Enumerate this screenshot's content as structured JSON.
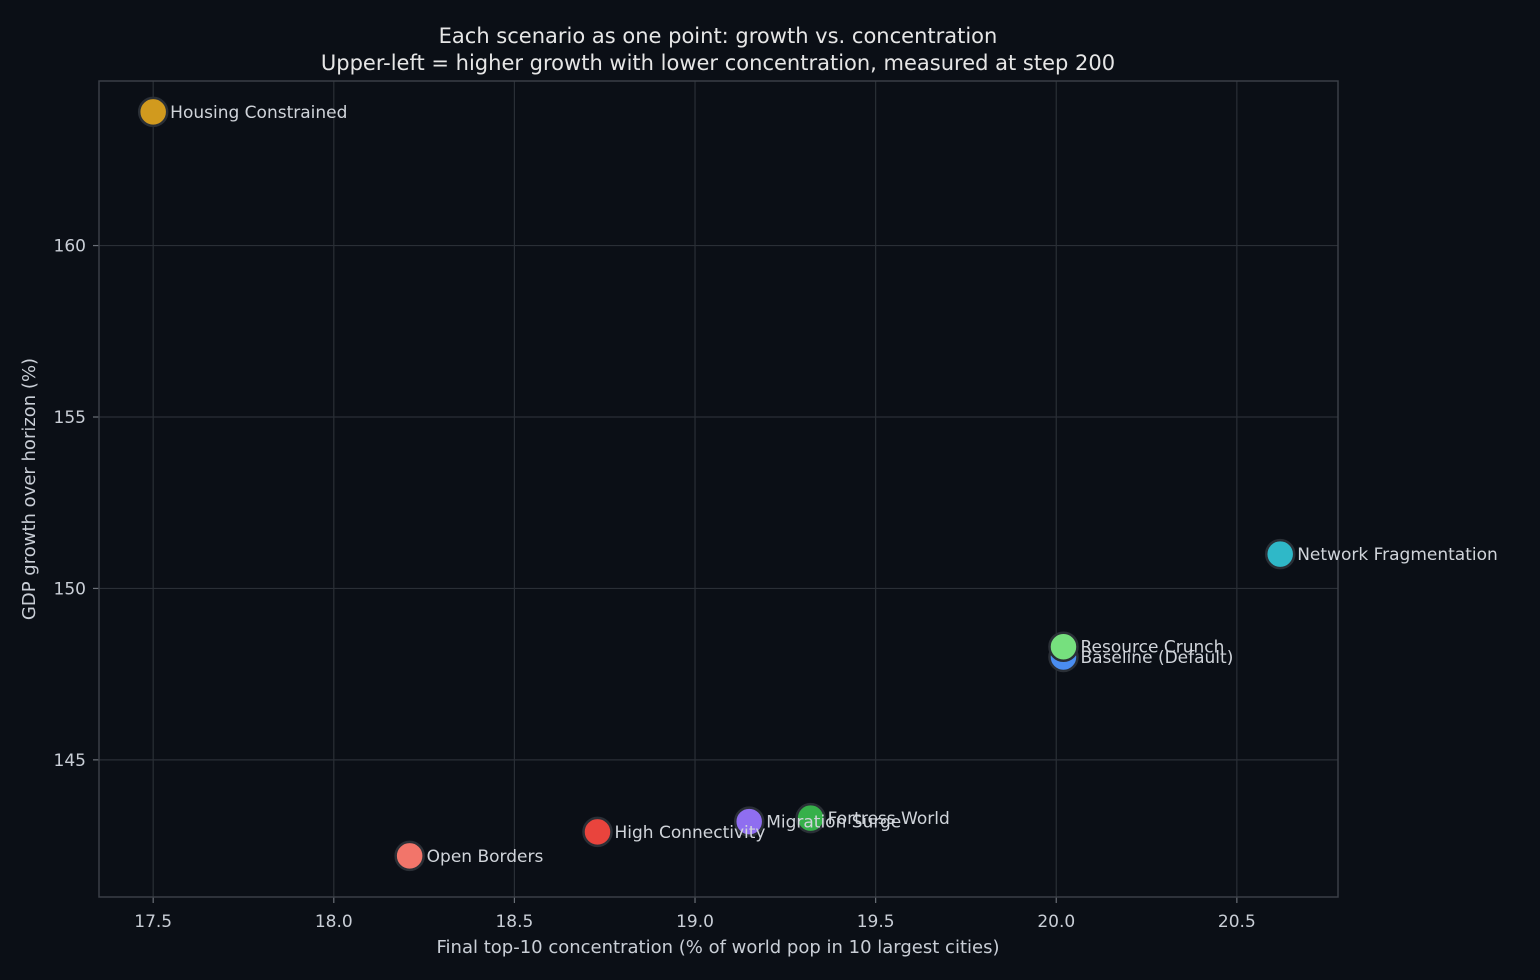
{
  "chart_data": {
    "type": "scatter",
    "title": "Each scenario as one point: growth vs. concentration",
    "subtitle": "Upper-left = higher growth with lower concentration, measured at step 200",
    "xlabel": "Final top-10 concentration (% of world pop in 10 largest cities)",
    "ylabel": "GDP growth over horizon (%)",
    "xlim": [
      17.35,
      20.78
    ],
    "ylim": [
      141.0,
      164.8
    ],
    "xticks": [
      17.5,
      18.0,
      18.5,
      19.0,
      19.5,
      20.0,
      20.5
    ],
    "yticks": [
      145,
      150,
      155,
      160
    ],
    "grid": true,
    "points": [
      {
        "label": "Housing Constrained",
        "x": 17.5,
        "y": 163.9,
        "color": "#d19a1e"
      },
      {
        "label": "Network Fragmentation",
        "x": 20.62,
        "y": 151.0,
        "color": "#2fb8c8"
      },
      {
        "label": "Baseline (Default)",
        "x": 20.02,
        "y": 148.0,
        "color": "#4a8df0"
      },
      {
        "label": "Resource Crunch",
        "x": 20.02,
        "y": 148.3,
        "color": "#76e07e"
      },
      {
        "label": "Fortress World",
        "x": 19.32,
        "y": 143.3,
        "color": "#36b04a"
      },
      {
        "label": "Migration Surge",
        "x": 19.15,
        "y": 143.2,
        "color": "#8f6ef0"
      },
      {
        "label": "High Connectivity",
        "x": 18.73,
        "y": 142.9,
        "color": "#e9443d"
      },
      {
        "label": "Open Borders",
        "x": 18.21,
        "y": 142.2,
        "color": "#f2756a"
      }
    ]
  }
}
